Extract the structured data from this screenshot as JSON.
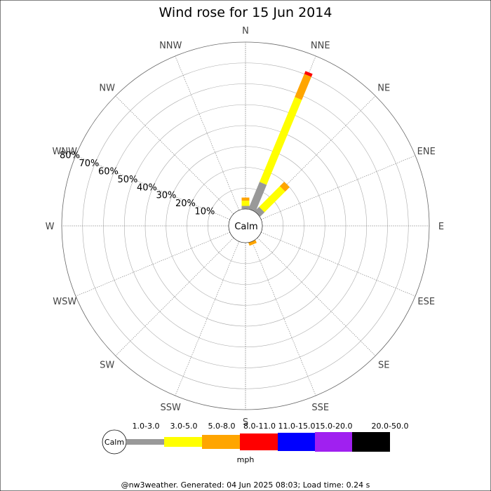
{
  "chart_data": {
    "type": "wind-rose",
    "title": "Wind rose for 15 Jun 2014",
    "center_label": "Calm",
    "directions": [
      "N",
      "NNE",
      "NE",
      "ENE",
      "E",
      "ESE",
      "SE",
      "SSE",
      "S",
      "SSW",
      "SW",
      "WSW",
      "W",
      "WNW",
      "NW",
      "NNW"
    ],
    "radial_ticks": [
      "10%",
      "20%",
      "30%",
      "40%",
      "50%",
      "60%",
      "70%",
      "80%"
    ],
    "radial_max": 80,
    "grid": true,
    "series": [
      {
        "direction": "N",
        "segments": [
          {
            "bin": "1.0-3.0",
            "value": 1.5
          },
          {
            "bin": "3.0-5.0",
            "value": 2.5
          },
          {
            "bin": "5.0-8.0",
            "value": 1.5
          }
        ]
      },
      {
        "direction": "NNE",
        "segments": [
          {
            "bin": "1.0-3.0",
            "value": 14
          },
          {
            "bin": "3.0-5.0",
            "value": 44
          },
          {
            "bin": "5.0-8.0",
            "value": 12
          },
          {
            "bin": "8.0-11.0",
            "value": 1.5
          }
        ]
      },
      {
        "direction": "NE",
        "segments": [
          {
            "bin": "1.0-3.0",
            "value": 3
          },
          {
            "bin": "3.0-5.0",
            "value": 14
          },
          {
            "bin": "5.0-8.0",
            "value": 3
          }
        ]
      },
      {
        "direction": "SSE",
        "segments": [
          {
            "bin": "5.0-8.0",
            "value": 1.5
          }
        ]
      }
    ]
  },
  "legend": {
    "calm_label": "Calm",
    "unit": "mph",
    "bins": [
      {
        "label": "1.0-3.0",
        "color": "#999999"
      },
      {
        "label": "3.0-5.0",
        "color": "#ffff00"
      },
      {
        "label": "5.0-8.0",
        "color": "#ffa500"
      },
      {
        "label": "8.0-11.0",
        "color": "#ff0000"
      },
      {
        "label": "11.0-15.0",
        "color": "#0000ff"
      },
      {
        "label": "15.0-20.0",
        "color": "#a020f0"
      },
      {
        "label": "20.0-50.0",
        "color": "#000000"
      }
    ]
  },
  "footer": {
    "text": "@nw3weather. Generated: 04 Jun 2025 08:03; Load time: 0.24 s"
  }
}
